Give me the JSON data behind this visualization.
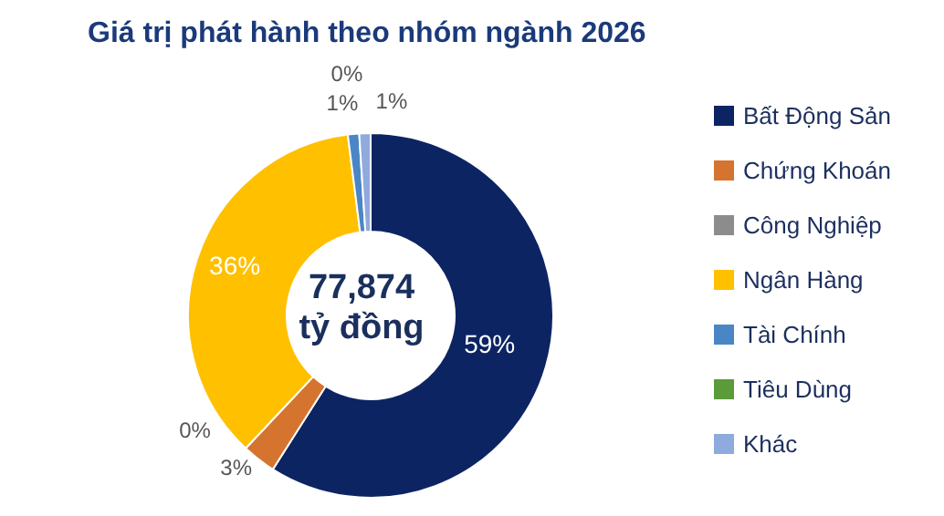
{
  "chart_data": {
    "type": "donut",
    "title": "Giá trị phát hành theo nhóm ngành 2026",
    "categories": [
      "Bất Động Sản",
      "Chứng Khoán",
      "Công Nghiệp",
      "Ngân Hàng",
      "Tài Chính",
      "Tiêu Dùng",
      "Khác"
    ],
    "values": [
      59,
      3,
      0,
      36,
      1,
      0,
      1
    ],
    "colors": [
      "#0d2463",
      "#d5742e",
      "#8c8c8c",
      "#ffc000",
      "#4a86c5",
      "#5b9b3a",
      "#8faadc"
    ],
    "value_labels": [
      "59%",
      "3%",
      "0%",
      "36%",
      "1%",
      "0%",
      "1%"
    ],
    "legend": "right",
    "annotations": [
      "77,874",
      "tỷ đồng"
    ]
  }
}
